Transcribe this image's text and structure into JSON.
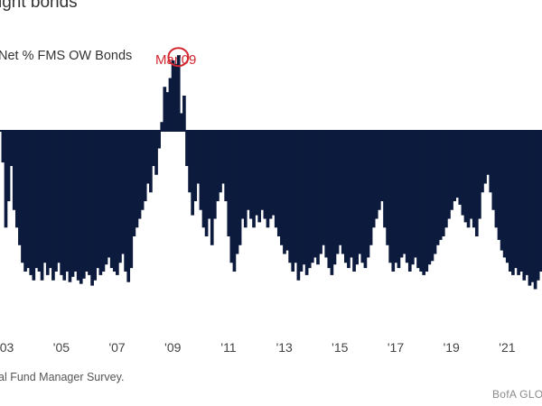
{
  "title": "ight bonds",
  "source": "al Fund Manager Survey.",
  "brand": "BofA GLO",
  "chart_data": {
    "type": "bar",
    "series_label": "Net % FMS OW Bonds",
    "annotation": {
      "label": "Mar'09",
      "x": 2009.2,
      "y": 43
    },
    "x_ticks": [
      {
        "label": "'03",
        "x": 2003.0
      },
      {
        "label": "'05",
        "x": 2005.0
      },
      {
        "label": "'07",
        "x": 2007.0
      },
      {
        "label": "'09",
        "x": 2009.0
      },
      {
        "label": "'11",
        "x": 2011.0
      },
      {
        "label": "'13",
        "x": 2013.0
      },
      {
        "label": "'15",
        "x": 2015.0
      },
      {
        "label": "'17",
        "x": 2017.0
      },
      {
        "label": "'19",
        "x": 2019.0
      },
      {
        "label": "'21",
        "x": 2021.0
      }
    ],
    "xlim": [
      2002.8,
      2022.25
    ],
    "ylim": [
      -90,
      50
    ],
    "grid": false,
    "color": "#0c1a3d",
    "annotation_color": "#d22630",
    "points": [
      [
        2002.9,
        -18
      ],
      [
        2003.0,
        -55
      ],
      [
        2003.1,
        -40
      ],
      [
        2003.2,
        -20
      ],
      [
        2003.3,
        -45
      ],
      [
        2003.4,
        -55
      ],
      [
        2003.5,
        -65
      ],
      [
        2003.6,
        -75
      ],
      [
        2003.7,
        -80
      ],
      [
        2003.8,
        -78
      ],
      [
        2003.9,
        -82
      ],
      [
        2004.0,
        -85
      ],
      [
        2004.1,
        -78
      ],
      [
        2004.2,
        -80
      ],
      [
        2004.3,
        -85
      ],
      [
        2004.4,
        -75
      ],
      [
        2004.5,
        -82
      ],
      [
        2004.6,
        -78
      ],
      [
        2004.7,
        -85
      ],
      [
        2004.8,
        -80
      ],
      [
        2004.9,
        -75
      ],
      [
        2005.0,
        -82
      ],
      [
        2005.1,
        -85
      ],
      [
        2005.2,
        -80
      ],
      [
        2005.3,
        -86
      ],
      [
        2005.4,
        -83
      ],
      [
        2005.5,
        -80
      ],
      [
        2005.6,
        -85
      ],
      [
        2005.7,
        -87
      ],
      [
        2005.8,
        -84
      ],
      [
        2005.9,
        -80
      ],
      [
        2006.0,
        -82
      ],
      [
        2006.1,
        -88
      ],
      [
        2006.2,
        -85
      ],
      [
        2006.3,
        -78
      ],
      [
        2006.4,
        -82
      ],
      [
        2006.5,
        -80
      ],
      [
        2006.6,
        -76
      ],
      [
        2006.7,
        -72
      ],
      [
        2006.8,
        -78
      ],
      [
        2006.9,
        -80
      ],
      [
        2007.0,
        -82
      ],
      [
        2007.1,
        -75
      ],
      [
        2007.2,
        -70
      ],
      [
        2007.3,
        -80
      ],
      [
        2007.4,
        -86
      ],
      [
        2007.5,
        -78
      ],
      [
        2007.6,
        -60
      ],
      [
        2007.7,
        -55
      ],
      [
        2007.8,
        -50
      ],
      [
        2007.9,
        -45
      ],
      [
        2008.0,
        -40
      ],
      [
        2008.1,
        -30
      ],
      [
        2008.2,
        -35
      ],
      [
        2008.3,
        -20
      ],
      [
        2008.4,
        -25
      ],
      [
        2008.5,
        -10
      ],
      [
        2008.6,
        5
      ],
      [
        2008.7,
        25
      ],
      [
        2008.8,
        22
      ],
      [
        2008.9,
        30
      ],
      [
        2009.0,
        40
      ],
      [
        2009.1,
        38
      ],
      [
        2009.2,
        43
      ],
      [
        2009.3,
        10
      ],
      [
        2009.4,
        20
      ],
      [
        2009.5,
        -20
      ],
      [
        2009.6,
        -35
      ],
      [
        2009.7,
        -48
      ],
      [
        2009.8,
        -40
      ],
      [
        2009.9,
        -30
      ],
      [
        2010.0,
        -45
      ],
      [
        2010.1,
        -55
      ],
      [
        2010.2,
        -60
      ],
      [
        2010.3,
        -50
      ],
      [
        2010.4,
        -65
      ],
      [
        2010.5,
        -50
      ],
      [
        2010.6,
        -40
      ],
      [
        2010.7,
        -35
      ],
      [
        2010.8,
        -30
      ],
      [
        2010.9,
        -40
      ],
      [
        2011.0,
        -60
      ],
      [
        2011.1,
        -75
      ],
      [
        2011.2,
        -80
      ],
      [
        2011.3,
        -70
      ],
      [
        2011.4,
        -65
      ],
      [
        2011.5,
        -50
      ],
      [
        2011.6,
        -55
      ],
      [
        2011.7,
        -45
      ],
      [
        2011.8,
        -50
      ],
      [
        2011.9,
        -55
      ],
      [
        2012.0,
        -48
      ],
      [
        2012.1,
        -52
      ],
      [
        2012.2,
        -45
      ],
      [
        2012.3,
        -50
      ],
      [
        2012.4,
        -55
      ],
      [
        2012.5,
        -50
      ],
      [
        2012.6,
        -48
      ],
      [
        2012.7,
        -55
      ],
      [
        2012.8,
        -60
      ],
      [
        2012.9,
        -65
      ],
      [
        2013.0,
        -70
      ],
      [
        2013.1,
        -68
      ],
      [
        2013.2,
        -75
      ],
      [
        2013.3,
        -80
      ],
      [
        2013.4,
        -75
      ],
      [
        2013.5,
        -85
      ],
      [
        2013.6,
        -80
      ],
      [
        2013.7,
        -76
      ],
      [
        2013.8,
        -82
      ],
      [
        2013.9,
        -78
      ],
      [
        2014.0,
        -75
      ],
      [
        2014.1,
        -72
      ],
      [
        2014.2,
        -76
      ],
      [
        2014.3,
        -70
      ],
      [
        2014.4,
        -65
      ],
      [
        2014.5,
        -72
      ],
      [
        2014.6,
        -78
      ],
      [
        2014.7,
        -82
      ],
      [
        2014.8,
        -76
      ],
      [
        2014.9,
        -70
      ],
      [
        2015.0,
        -65
      ],
      [
        2015.1,
        -70
      ],
      [
        2015.2,
        -75
      ],
      [
        2015.3,
        -78
      ],
      [
        2015.4,
        -72
      ],
      [
        2015.5,
        -80
      ],
      [
        2015.6,
        -76
      ],
      [
        2015.7,
        -70
      ],
      [
        2015.8,
        -75
      ],
      [
        2015.9,
        -78
      ],
      [
        2016.0,
        -72
      ],
      [
        2016.1,
        -65
      ],
      [
        2016.2,
        -55
      ],
      [
        2016.3,
        -50
      ],
      [
        2016.4,
        -45
      ],
      [
        2016.5,
        -40
      ],
      [
        2016.6,
        -55
      ],
      [
        2016.7,
        -65
      ],
      [
        2016.8,
        -75
      ],
      [
        2016.9,
        -80
      ],
      [
        2017.0,
        -75
      ],
      [
        2017.1,
        -78
      ],
      [
        2017.2,
        -72
      ],
      [
        2017.3,
        -70
      ],
      [
        2017.4,
        -75
      ],
      [
        2017.5,
        -80
      ],
      [
        2017.6,
        -76
      ],
      [
        2017.7,
        -72
      ],
      [
        2017.8,
        -78
      ],
      [
        2017.9,
        -80
      ],
      [
        2018.0,
        -82
      ],
      [
        2018.1,
        -80
      ],
      [
        2018.2,
        -76
      ],
      [
        2018.3,
        -74
      ],
      [
        2018.4,
        -70
      ],
      [
        2018.5,
        -65
      ],
      [
        2018.6,
        -62
      ],
      [
        2018.7,
        -60
      ],
      [
        2018.8,
        -55
      ],
      [
        2018.9,
        -50
      ],
      [
        2019.0,
        -45
      ],
      [
        2019.1,
        -40
      ],
      [
        2019.2,
        -38
      ],
      [
        2019.3,
        -42
      ],
      [
        2019.4,
        -48
      ],
      [
        2019.5,
        -52
      ],
      [
        2019.6,
        -55
      ],
      [
        2019.7,
        -50
      ],
      [
        2019.8,
        -55
      ],
      [
        2019.9,
        -60
      ],
      [
        2020.0,
        -50
      ],
      [
        2020.1,
        -35
      ],
      [
        2020.2,
        -30
      ],
      [
        2020.3,
        -25
      ],
      [
        2020.4,
        -35
      ],
      [
        2020.5,
        -45
      ],
      [
        2020.6,
        -55
      ],
      [
        2020.7,
        -62
      ],
      [
        2020.8,
        -68
      ],
      [
        2020.9,
        -72
      ],
      [
        2021.0,
        -75
      ],
      [
        2021.1,
        -80
      ],
      [
        2021.2,
        -82
      ],
      [
        2021.3,
        -78
      ],
      [
        2021.4,
        -82
      ],
      [
        2021.5,
        -80
      ],
      [
        2021.6,
        -85
      ],
      [
        2021.7,
        -82
      ],
      [
        2021.8,
        -88
      ],
      [
        2021.9,
        -86
      ],
      [
        2022.0,
        -90
      ],
      [
        2022.1,
        -85
      ],
      [
        2022.2,
        -80
      ]
    ]
  }
}
